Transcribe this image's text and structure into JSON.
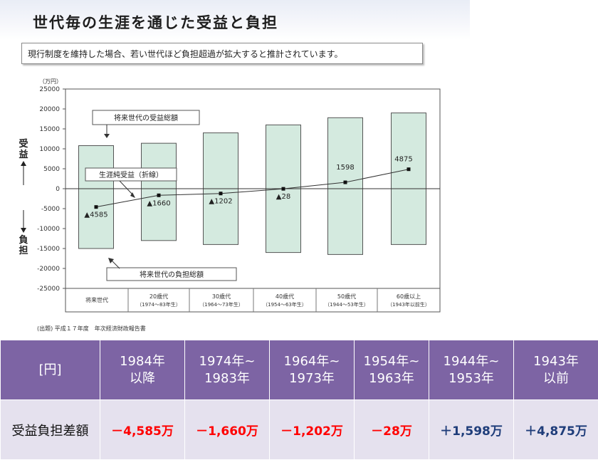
{
  "header": {
    "title": "世代毎の生涯を通じた受益と負担",
    "subtitle": "現行制度を維持した場合、若い世代ほど負担超過が拡大すると推計されています。"
  },
  "source_note": "(出題) 平成１７年度　年次経済財政報告書",
  "colors": {
    "bar_fill": "#d4eadf",
    "negative_text": "#ff0000",
    "positive_text": "#1f3d7a",
    "table_header_bg": "#7d64a4",
    "table_body_bg": "#e5e1ee"
  },
  "chart_data": {
    "type": "bar",
    "unit_label": "（万円）",
    "ylim": [
      -25000,
      25000
    ],
    "yticks": [
      25000,
      20000,
      15000,
      10000,
      5000,
      0,
      -5000,
      -10000,
      -15000,
      -20000,
      -25000
    ],
    "ylabel_top": "受益",
    "ylabel_bottom": "負担",
    "categories": [
      {
        "line1": "将来世代",
        "line2": ""
      },
      {
        "line1": "20歳代",
        "line2": "（1974～83年生）"
      },
      {
        "line1": "30歳代",
        "line2": "（1964～73年生）"
      },
      {
        "line1": "40歳代",
        "line2": "（1954～63年生）"
      },
      {
        "line1": "50歳代",
        "line2": "（1944～53年生）"
      },
      {
        "line1": "60歳以上",
        "line2": "（1943年以前生）"
      }
    ],
    "series": [
      {
        "name": "将来世代の受益総額",
        "kind": "bar_positive",
        "values": [
          10800,
          11400,
          14000,
          16000,
          17800,
          19000
        ]
      },
      {
        "name": "将来世代の負担総額",
        "kind": "bar_negative",
        "values": [
          -15000,
          -13000,
          -14000,
          -16000,
          -16500,
          -14000
        ]
      },
      {
        "name": "生涯純受益（折線）",
        "kind": "line",
        "values": [
          -4585,
          -1660,
          -1202,
          -28,
          1598,
          4875
        ]
      }
    ],
    "data_labels": [
      "▲4585",
      "▲1660",
      "▲1202",
      "▲28",
      "1598",
      "4875"
    ],
    "grid": false
  },
  "table": {
    "corner": "[円]",
    "headers": [
      "1984年\n以降",
      "1974年~\n1983年",
      "1964年~\n1973年",
      "1954年~\n1963年",
      "1944年~\n1953年",
      "1943年\n以前"
    ],
    "row_label": "受益負担差額",
    "values": [
      "－4,585万",
      "－1,660万",
      "－1,202万",
      "－28万",
      "＋1,598万",
      "＋4,875万"
    ]
  }
}
